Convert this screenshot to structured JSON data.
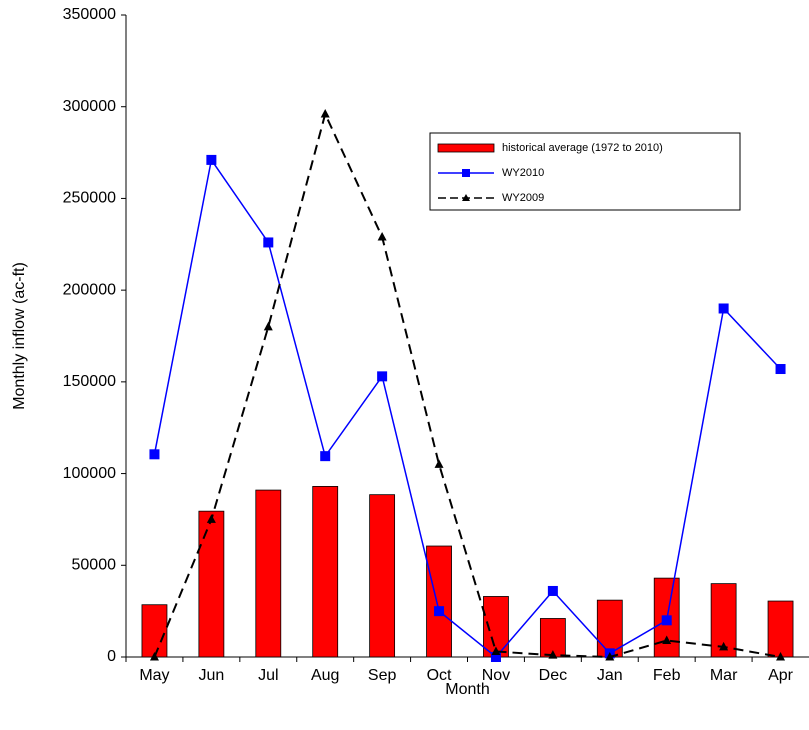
{
  "chart_data": {
    "type": "bar",
    "xlabel": "Month",
    "ylabel": "Monthly inflow (ac-ft)",
    "categories": [
      "May",
      "Jun",
      "Jul",
      "Aug",
      "Sep",
      "Oct",
      "Nov",
      "Dec",
      "Jan",
      "Feb",
      "Mar",
      "Apr"
    ],
    "series": [
      {
        "name": "historical average (1972 to 2010)",
        "type": "bar",
        "color": "#ff0000",
        "values": [
          28500,
          79500,
          91000,
          93000,
          88500,
          60500,
          33000,
          21000,
          31000,
          43000,
          40000,
          30500
        ]
      },
      {
        "name": "WY2010",
        "type": "line",
        "color": "#0000ff",
        "marker": "square",
        "values": [
          110500,
          271000,
          226000,
          109500,
          153000,
          25000,
          0,
          36000,
          2000,
          20000,
          190000,
          157000
        ]
      },
      {
        "name": "WY2009",
        "type": "line",
        "color": "#000000",
        "marker": "triangle",
        "dashed": true,
        "values": [
          0,
          75000,
          180000,
          296000,
          229000,
          105000,
          3000,
          1000,
          0,
          9000,
          5500,
          0
        ]
      }
    ],
    "ylim": [
      0,
      350000
    ],
    "yticks": [
      0,
      50000,
      100000,
      150000,
      200000,
      250000,
      300000,
      350000
    ],
    "grid": false,
    "legend": "upper right"
  }
}
